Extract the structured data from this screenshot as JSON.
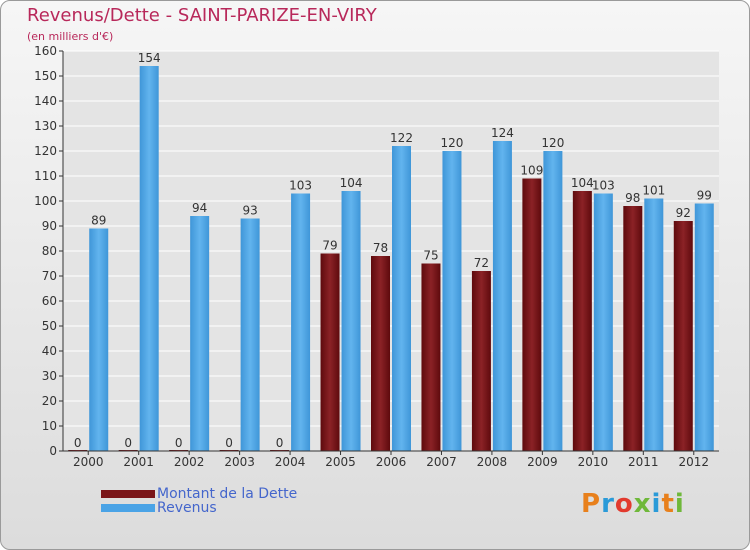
{
  "header": {
    "title": "Revenus/Dette - SAINT-PARIZE-EN-VIRY",
    "subtitle": "(en milliers d'€)"
  },
  "legend": [
    {
      "label": "Montant de la Dette",
      "color": "#7a1518"
    },
    {
      "label": "Revenus",
      "color": "#4aa3e6"
    }
  ],
  "logo": {
    "text": "Proxiti",
    "colors": [
      "#e8801c",
      "#2a9ad8",
      "#e23a2e",
      "#6fb83a",
      "#2a9ad8",
      "#e8801c",
      "#6fb83a"
    ]
  },
  "chart_data": {
    "type": "bar",
    "title": "Revenus/Dette - SAINT-PARIZE-EN-VIRY",
    "ylabel": "(en milliers d'€)",
    "categories": [
      "2000",
      "2001",
      "2002",
      "2003",
      "2004",
      "2005",
      "2006",
      "2007",
      "2008",
      "2009",
      "2010",
      "2011",
      "2012"
    ],
    "series": [
      {
        "name": "Montant de la Dette",
        "color": "#7a1518",
        "values": [
          0,
          0,
          0,
          0,
          0,
          79,
          78,
          75,
          72,
          109,
          104,
          98,
          92
        ]
      },
      {
        "name": "Revenus",
        "color": "#4aa3e6",
        "values": [
          89,
          154,
          94,
          93,
          103,
          104,
          122,
          120,
          124,
          120,
          103,
          101,
          99
        ]
      }
    ],
    "yticks": [
      0,
      10,
      20,
      30,
      40,
      50,
      60,
      70,
      80,
      90,
      100,
      110,
      120,
      130,
      140,
      150,
      160
    ],
    "ylim": [
      0,
      160
    ],
    "grid": true,
    "legend_position": "bottom-left"
  }
}
